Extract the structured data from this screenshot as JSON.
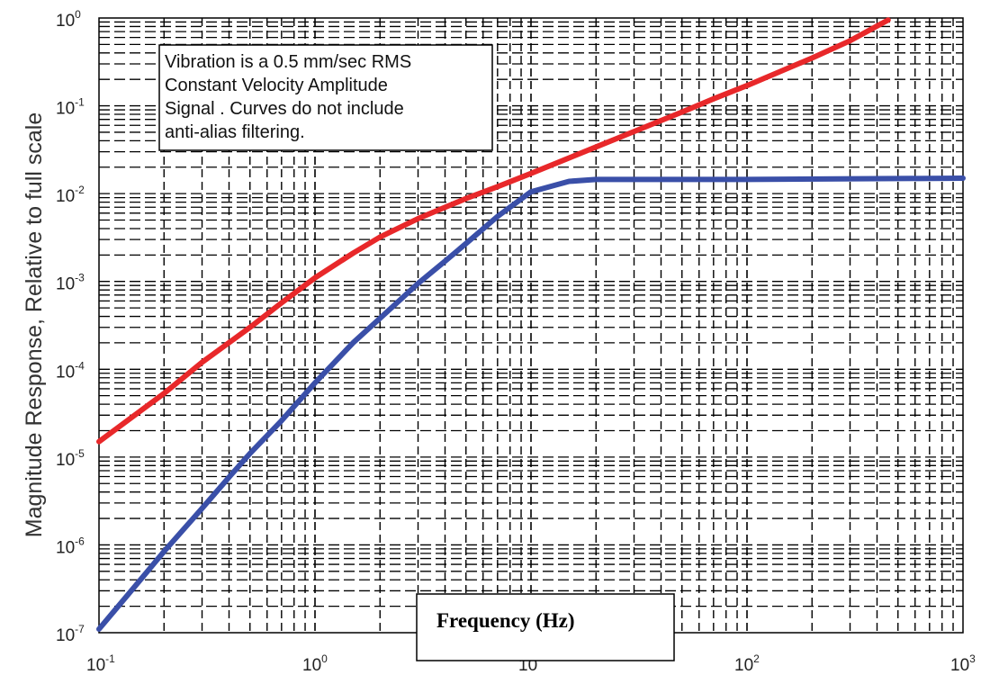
{
  "chart_data": {
    "type": "line",
    "xscale": "log",
    "yscale": "log",
    "xlim": [
      0.1,
      1000
    ],
    "ylim": [
      1e-07,
      1
    ],
    "grid": true,
    "grid_style": "dashed",
    "xlabel": "Frequency (Hz)",
    "ylabel": "Magnitude Response, Relative to full scale",
    "annotation": [
      "Vibration is a 0.5 mm/sec RMS",
      "Constant Velocity Amplitude",
      "Signal . Curves do not include",
      "anti-alias filtering."
    ],
    "x_ticks": [
      {
        "value": 0.1,
        "base": "10",
        "exp": "-1"
      },
      {
        "value": 1,
        "base": "10",
        "exp": "0"
      },
      {
        "value": 10,
        "base": "10",
        "exp": ""
      },
      {
        "value": 100,
        "base": "10",
        "exp": "2"
      },
      {
        "value": 1000,
        "base": "10",
        "exp": "3"
      }
    ],
    "y_ticks": [
      {
        "value": 1,
        "base": "10",
        "exp": "0"
      },
      {
        "value": 0.1,
        "base": "10",
        "exp": "-1"
      },
      {
        "value": 0.01,
        "base": "10",
        "exp": "-2"
      },
      {
        "value": 0.001,
        "base": "10",
        "exp": "-3"
      },
      {
        "value": 0.0001,
        "base": "10",
        "exp": "-4"
      },
      {
        "value": 1e-05,
        "base": "10",
        "exp": "-5"
      },
      {
        "value": 1e-06,
        "base": "10",
        "exp": "-6"
      },
      {
        "value": 1e-07,
        "base": "10",
        "exp": "-7"
      }
    ],
    "series": [
      {
        "color": "#e8282a",
        "x": [
          0.1,
          0.2,
          0.3,
          0.5,
          0.7,
          1,
          1.5,
          2,
          3,
          5,
          7,
          10,
          20,
          30,
          50,
          70,
          100,
          200,
          300,
          450
        ],
        "y": [
          1.5e-05,
          5.3e-05,
          0.00012,
          0.0003,
          0.00057,
          0.0011,
          0.0021,
          0.0032,
          0.0052,
          0.0088,
          0.012,
          0.017,
          0.034,
          0.051,
          0.085,
          0.12,
          0.17,
          0.35,
          0.55,
          0.95
        ]
      },
      {
        "color": "#3a4fa8",
        "x": [
          0.1,
          0.15,
          0.2,
          0.3,
          0.4,
          0.5,
          0.7,
          1,
          1.5,
          2,
          3,
          4,
          5,
          7,
          10,
          15,
          20,
          50,
          100,
          1000
        ],
        "y": [
          1.1e-07,
          3.6e-07,
          8.4e-07,
          2.6e-06,
          5.9e-06,
          1.1e-05,
          2.6e-05,
          7e-05,
          0.0002,
          0.00038,
          0.00095,
          0.0017,
          0.0027,
          0.0055,
          0.0105,
          0.0138,
          0.0145,
          0.0145,
          0.0145,
          0.015
        ]
      }
    ]
  }
}
